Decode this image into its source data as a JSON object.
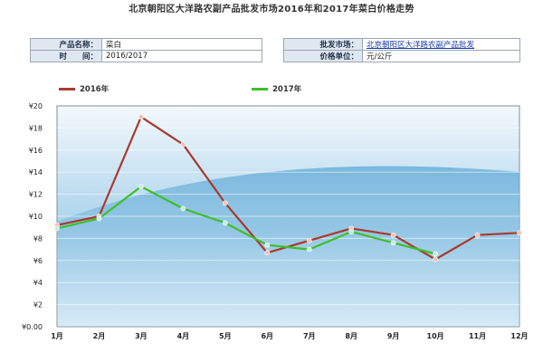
{
  "page": {
    "title": "北京朝阳区大洋路农副产品批发市场2016年和2017年菜白价格走势"
  },
  "info": {
    "product_label": "产品名称：",
    "product_value": "菜白",
    "time_label": "时　　间：",
    "time_value": "2016/2017",
    "market_label": "批发市场：",
    "market_value": "北京朝阳区大洋路农副产品批发",
    "unit_label": "价格单位：",
    "unit_value": "元/公斤"
  },
  "colors": {
    "series_2016": "#a83a2e",
    "series_2017": "#3fbf2a"
  },
  "chart_data": {
    "type": "line",
    "categories": [
      "1月",
      "2月",
      "3月",
      "4月",
      "5月",
      "6月",
      "7月",
      "8月",
      "9月",
      "10月",
      "11月",
      "12月"
    ],
    "y_tick_labels": [
      "¥0.00",
      "¥2",
      "¥4",
      "¥6",
      "¥8",
      "¥10",
      "¥12",
      "¥14",
      "¥16",
      "¥18",
      "¥20"
    ],
    "ylim": [
      0,
      20
    ],
    "grid": true,
    "legend": "top-left",
    "series": [
      {
        "name": "2016年",
        "values": [
          9.2,
          10.0,
          19.0,
          16.5,
          11.2,
          6.7,
          7.8,
          8.9,
          8.3,
          6.1,
          8.3,
          8.5
        ]
      },
      {
        "name": "2017年",
        "values": [
          8.9,
          9.8,
          12.7,
          10.7,
          9.4,
          7.4,
          7.0,
          8.6,
          7.6,
          6.6,
          null,
          null
        ]
      }
    ]
  }
}
